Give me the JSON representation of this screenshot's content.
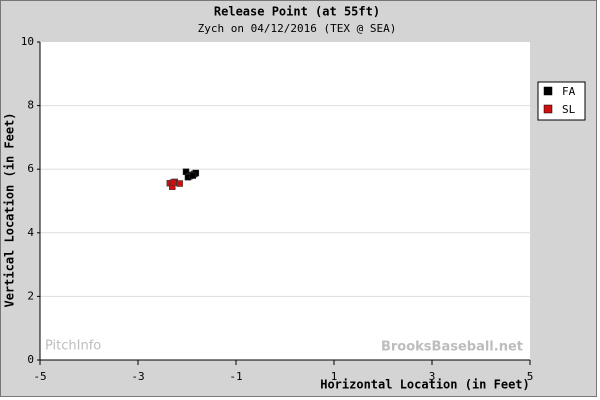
{
  "chart_data": {
    "type": "scatter",
    "title": "Release Point (at 55ft)",
    "subtitle": "Zych on 04/12/2016 (TEX @ SEA)",
    "x_label": "Horizontal Location (in Feet)",
    "y_label": "Vertical Location (in Feet)",
    "watermarks": [
      "PitchInfo",
      "BrooksBaseball.net"
    ],
    "xlim": [
      -5,
      5
    ],
    "xticks": [
      -5,
      -3,
      -1,
      1,
      3,
      5
    ],
    "ylim": [
      0,
      10
    ],
    "yticks": [
      0,
      2,
      4,
      6,
      8,
      10
    ],
    "grid": true,
    "legend": "right",
    "series": [
      {
        "name": "FA",
        "color": "#000000",
        "x": [
          -2.02,
          -1.95,
          -1.9,
          -1.85,
          -1.82,
          -1.98,
          -1.88
        ],
        "values": [
          5.92,
          5.78,
          5.82,
          5.85,
          5.88,
          5.75,
          5.8
        ]
      },
      {
        "name": "SL",
        "color": "#cc1111",
        "x": [
          -2.35,
          -2.3,
          -2.25,
          -2.15,
          -2.28
        ],
        "values": [
          5.56,
          5.45,
          5.6,
          5.55,
          5.58
        ]
      }
    ]
  }
}
